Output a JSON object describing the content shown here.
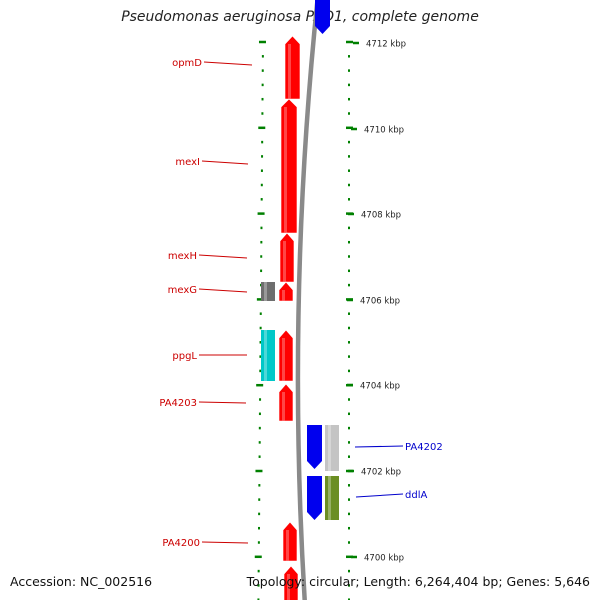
{
  "title": "Pseudomonas aeruginosa PAO1, complete genome",
  "footer": {
    "accession": "Accession: NC_002516",
    "info": "Topology: circular; Length: 6,264,404 bp; Genes: 5,646"
  },
  "colors": {
    "forward_cds": "#ff0000",
    "reverse_cds": "#0000ee",
    "backbone": "#8a8a8a",
    "ticks": "#008000",
    "forward_label": "#cc0000",
    "reverse_label": "#0000cc",
    "gray_feature": "#6e6e6e",
    "cyan_feature": "#00c8c8",
    "light_gray_feature": "#c4c4c4",
    "olive_feature": "#6b8e23"
  },
  "scale_labels": [
    "4712 kbp",
    "4710 kbp",
    "4708 kbp",
    "4706 kbp",
    "4704 kbp",
    "4702 kbp",
    "4700 kbp"
  ],
  "genes_forward": [
    {
      "name": "opmD"
    },
    {
      "name": "mexI"
    },
    {
      "name": "mexH"
    },
    {
      "name": "mexG"
    },
    {
      "name": "ppgL"
    },
    {
      "name": "PA4203"
    },
    {
      "name": "PA4200"
    }
  ],
  "genes_reverse": [
    {
      "name": "PA4202"
    },
    {
      "name": "ddlA"
    }
  ]
}
